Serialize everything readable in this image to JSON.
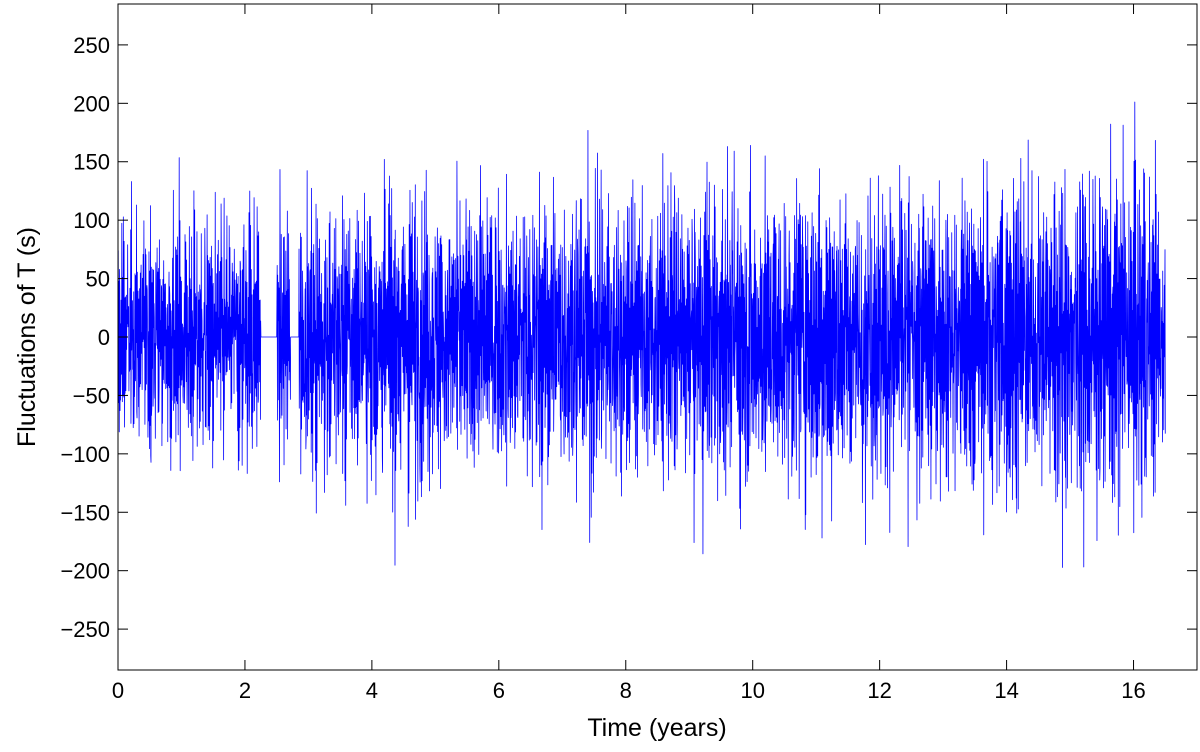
{
  "chart_data": {
    "type": "line",
    "title": "",
    "xlabel": "Time (years)",
    "ylabel": "Fluctuations of T (s)",
    "xlim": [
      0,
      17
    ],
    "ylim": [
      -285,
      285
    ],
    "xticks": [
      0,
      2,
      4,
      6,
      8,
      10,
      12,
      14,
      16
    ],
    "yticks": [
      -250,
      -200,
      -150,
      -100,
      -50,
      0,
      50,
      100,
      150,
      200,
      250
    ],
    "xtick_labels": [
      "0",
      "2",
      "4",
      "6",
      "8",
      "10",
      "12",
      "14",
      "16"
    ],
    "ytick_labels": [
      "−250",
      "−200",
      "−150",
      "−100",
      "−50",
      "0",
      "50",
      "100",
      "150",
      "200",
      "250"
    ],
    "grid": false,
    "series": [
      {
        "color": "#0000ff",
        "x_start": 0,
        "x_end": 16.5,
        "samples_per_year": 250,
        "gaps": [
          {
            "x_start": 2.25,
            "x_end": 2.5,
            "value": 0
          },
          {
            "x_start": 2.72,
            "x_end": 2.85,
            "value": 0
          }
        ],
        "envelope": {
          "x": [
            0,
            2,
            3,
            4,
            6,
            8,
            10,
            12,
            14,
            16,
            16.5
          ],
          "typical_amplitude": [
            90,
            100,
            105,
            110,
            115,
            115,
            120,
            120,
            125,
            130,
            110
          ],
          "max": 240,
          "min": -240
        }
      }
    ]
  }
}
